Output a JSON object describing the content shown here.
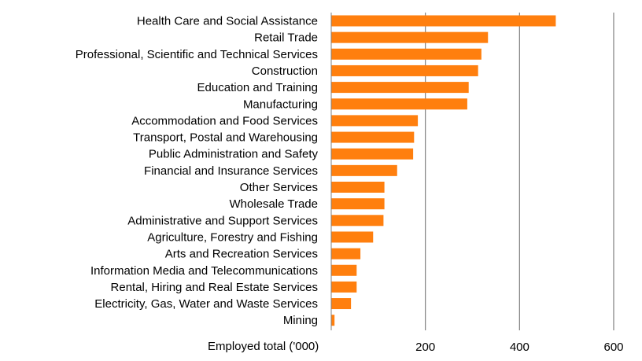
{
  "chart_data": {
    "type": "bar",
    "orientation": "horizontal",
    "categories": [
      "Health Care and Social Assistance",
      "Retail Trade",
      "Professional, Scientific and Technical Services",
      "Construction",
      "Education and Training",
      "Manufacturing",
      "Accommodation and Food Services",
      "Transport, Postal and Warehousing",
      "Public Administration and Safety",
      "Financial and Insurance Services",
      "Other Services",
      "Wholesale Trade",
      "Administrative and Support Services",
      "Agriculture, Forestry and Fishing",
      "Arts and Recreation Services",
      "Information Media and Telecommunications",
      "Rental, Hiring and Real Estate Services",
      "Electricity, Gas, Water and Waste Services",
      "Mining"
    ],
    "values": [
      477,
      333,
      319,
      312,
      292,
      289,
      184,
      176,
      174,
      140,
      113,
      113,
      111,
      89,
      62,
      54,
      54,
      42,
      7
    ],
    "xlabel": "Employed total ('000)",
    "xlim": [
      0,
      600
    ],
    "xticks": [
      200,
      400,
      600
    ],
    "grid": true,
    "legend": "none",
    "bar_color": "#FF7F0E",
    "grid_color": "#808080"
  }
}
